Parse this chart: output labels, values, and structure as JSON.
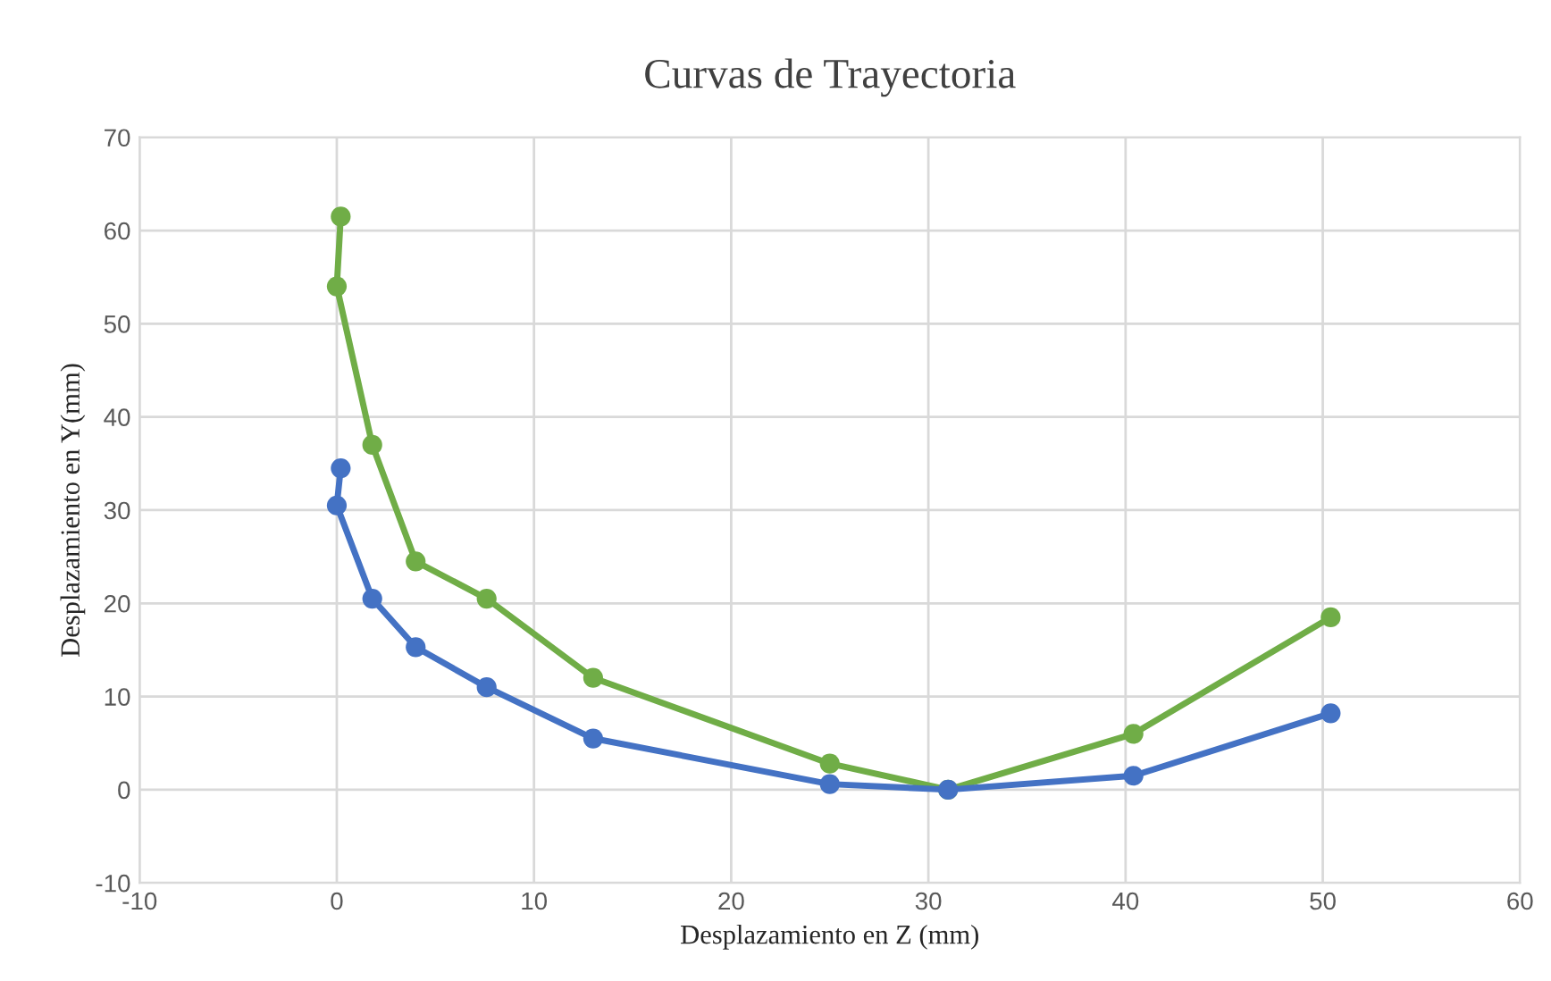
{
  "chart_data": {
    "type": "line",
    "title": "Curvas de Trayectoria",
    "xlabel": "Desplazamiento en Z (mm)",
    "ylabel": "Desplazamiento en Y(mm)",
    "series": [
      {
        "color": "#70ad47",
        "x": [
          0.2,
          0,
          1.8,
          4,
          7.6,
          13,
          25,
          31,
          40.4,
          50.4
        ],
        "values": [
          61.5,
          54,
          37,
          24.5,
          20.5,
          12,
          2.8,
          0,
          6,
          18.5
        ]
      },
      {
        "color": "#4472c4",
        "x": [
          0.2,
          0,
          1.8,
          4,
          7.6,
          13,
          25,
          31,
          40.4,
          50.4
        ],
        "values": [
          34.5,
          30.5,
          20.5,
          15.3,
          11,
          5.5,
          0.6,
          0,
          1.5,
          8.2
        ]
      }
    ],
    "xlim": [
      -10,
      60
    ],
    "xticks": [
      -10,
      0,
      10,
      20,
      30,
      40,
      50,
      60
    ],
    "ylim": [
      -10,
      70
    ],
    "yticks": [
      -10,
      0,
      10,
      20,
      30,
      40,
      50,
      60,
      70
    ],
    "grid": true,
    "marker": "circle",
    "line_style": "solid"
  }
}
